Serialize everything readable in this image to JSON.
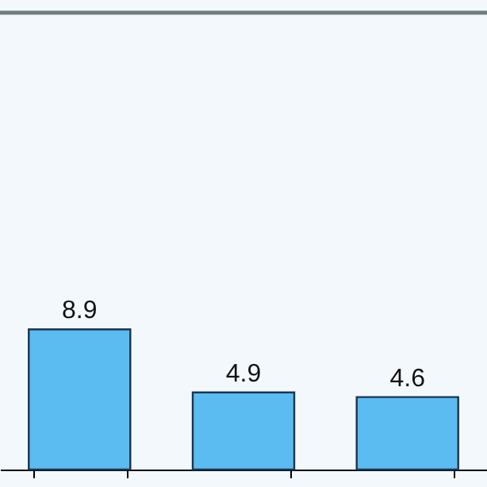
{
  "chart_data": {
    "type": "bar",
    "categories": [
      null,
      null,
      null
    ],
    "values": [
      8.9,
      4.9,
      4.6
    ],
    "color": "#5bbcf2",
    "ylim": [
      0,
      29
    ],
    "data_labels": true,
    "tick_labels": false
  }
}
